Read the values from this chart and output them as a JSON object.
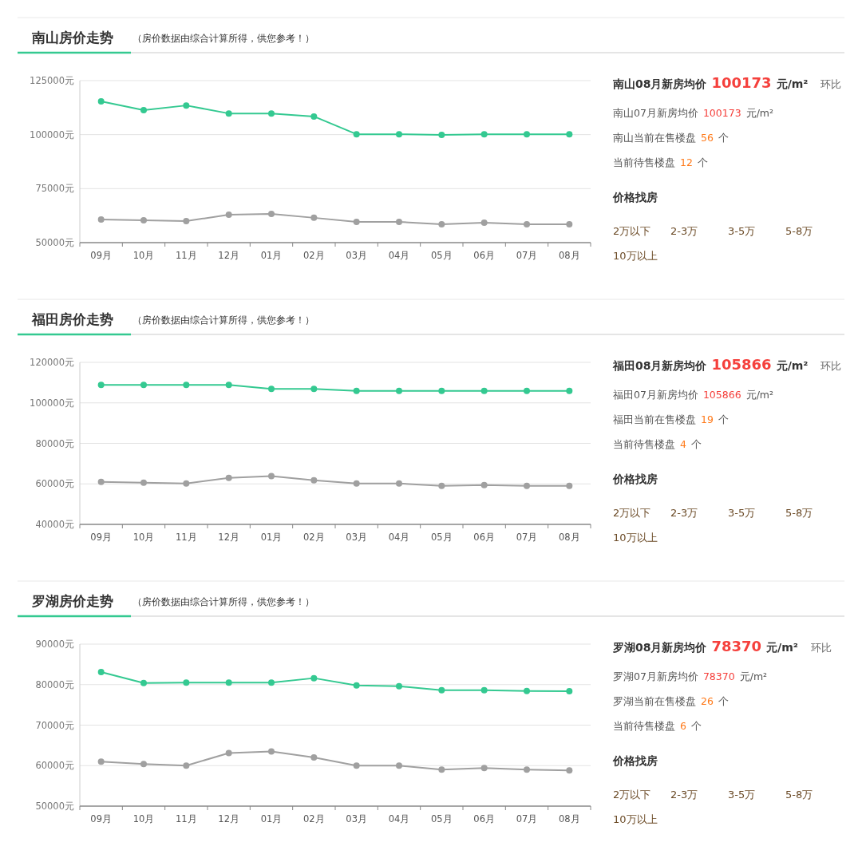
{
  "chart_data": [
    {
      "type": "line",
      "title": "南山房价走势",
      "subtitle": "（房价数据由综合计算所得，供您参考！）",
      "categories": [
        "09月",
        "10月",
        "11月",
        "12月",
        "01月",
        "02月",
        "03月",
        "04月",
        "05月",
        "06月",
        "07月",
        "08月"
      ],
      "marker": "circle",
      "grid": "y",
      "ylim": [
        50000,
        125000
      ],
      "yticks": [
        {
          "value": 50000,
          "label": "50000元"
        },
        {
          "value": 75000,
          "label": "75000元"
        },
        {
          "value": 100000,
          "label": "100000元"
        },
        {
          "value": 125000,
          "label": "125000元"
        }
      ],
      "series": [
        {
          "color": "#34c991",
          "values": [
            115400,
            111300,
            113500,
            109800,
            109800,
            108400,
            100200,
            100200,
            99900,
            100200,
            100173,
            100173
          ]
        },
        {
          "color": "#a0a0a0",
          "values": [
            60700,
            60300,
            60000,
            62900,
            63300,
            61500,
            59600,
            59600,
            58500,
            59200,
            58500,
            58500
          ]
        }
      ]
    },
    {
      "type": "other",
      "annotations": [
        "南山08月新房均价",
        "100173",
        "元/m²",
        "环比",
        "南山07月新房均价",
        "100173",
        "元/m²",
        "南山当前在售楼盘",
        "56",
        "个",
        "当前待售楼盘",
        "12",
        "个",
        "价格找房",
        "2万以下",
        "2-3万",
        "3-5万",
        "5-8万",
        "10万以上"
      ]
    },
    {
      "type": "line",
      "title": "福田房价走势",
      "subtitle": "（房价数据由综合计算所得，供您参考！）",
      "categories": [
        "09月",
        "10月",
        "11月",
        "12月",
        "01月",
        "02月",
        "03月",
        "04月",
        "05月",
        "06月",
        "07月",
        "08月"
      ],
      "marker": "circle",
      "grid": "y",
      "ylim": [
        40000,
        120000
      ],
      "yticks": [
        {
          "value": 40000,
          "label": "40000元"
        },
        {
          "value": 60000,
          "label": "60000元"
        },
        {
          "value": 80000,
          "label": "80000元"
        },
        {
          "value": 100000,
          "label": "100000元"
        },
        {
          "value": 120000,
          "label": "120000元"
        }
      ],
      "series": [
        {
          "color": "#34c991",
          "values": [
            108900,
            108900,
            108900,
            108900,
            106900,
            106900,
            105900,
            105900,
            105900,
            105900,
            105866,
            105866
          ]
        },
        {
          "color": "#a0a0a0",
          "values": [
            61000,
            60600,
            60200,
            63000,
            63800,
            61800,
            60200,
            60200,
            59000,
            59400,
            59000,
            59000
          ]
        }
      ]
    },
    {
      "type": "other",
      "annotations": [
        "福田08月新房均价",
        "105866",
        "元/m²",
        "环比",
        "福田07月新房均价",
        "105866",
        "元/m²",
        "福田当前在售楼盘",
        "19",
        "个",
        "当前待售楼盘",
        "4",
        "个",
        "价格找房",
        "2万以下",
        "2-3万",
        "3-5万",
        "5-8万",
        "10万以上"
      ]
    },
    {
      "type": "line",
      "title": "罗湖房价走势",
      "subtitle": "（房价数据由综合计算所得，供您参考！）",
      "categories": [
        "09月",
        "10月",
        "11月",
        "12月",
        "01月",
        "02月",
        "03月",
        "04月",
        "05月",
        "06月",
        "07月",
        "08月"
      ],
      "marker": "circle",
      "grid": "y",
      "ylim": [
        50000,
        90000
      ],
      "yticks": [
        {
          "value": 50000,
          "label": "50000元"
        },
        {
          "value": 60000,
          "label": "60000元"
        },
        {
          "value": 70000,
          "label": "70000元"
        },
        {
          "value": 80000,
          "label": "80000元"
        },
        {
          "value": 90000,
          "label": "90000元"
        }
      ],
      "series": [
        {
          "color": "#34c991",
          "values": [
            83100,
            80400,
            80500,
            80500,
            80500,
            81600,
            79800,
            79600,
            78600,
            78600,
            78400,
            78370
          ]
        },
        {
          "color": "#a0a0a0",
          "values": [
            61000,
            60400,
            60000,
            63100,
            63500,
            62000,
            60000,
            60000,
            59000,
            59400,
            59000,
            58800
          ]
        }
      ]
    },
    {
      "type": "other",
      "annotations": [
        "罗湖08月新房均价",
        "78370",
        "元/m²",
        "环比",
        "罗湖07月新房均价",
        "78370",
        "元/m²",
        "罗湖当前在售楼盘",
        "26",
        "个",
        "当前待售楼盘",
        "6",
        "个",
        "价格找房",
        "2万以下",
        "2-3万",
        "3-5万",
        "5-8万",
        "10万以上"
      ]
    }
  ]
}
